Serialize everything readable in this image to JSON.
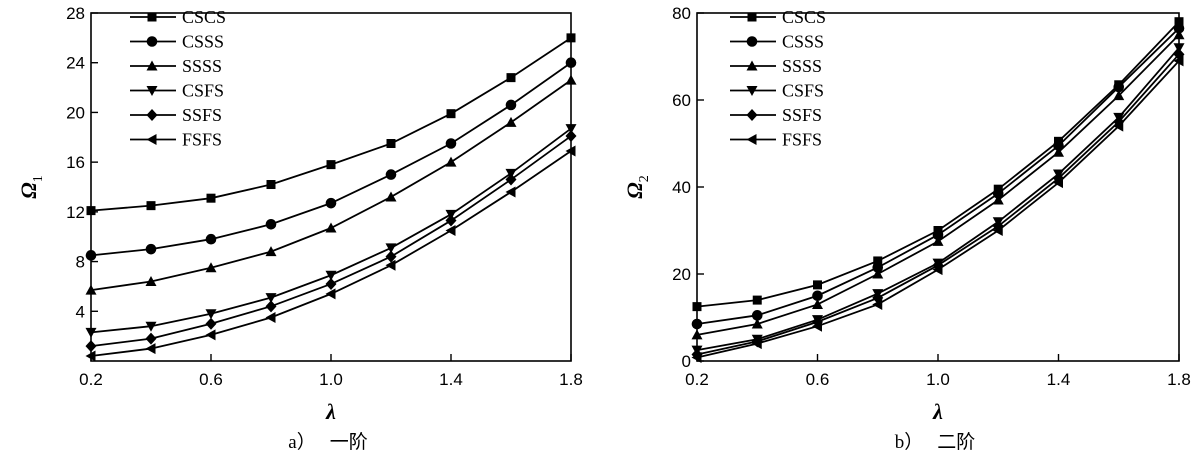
{
  "chart_data": [
    {
      "type": "line",
      "caption_letter": "a）",
      "caption_text": "一阶",
      "xlabel": "λ",
      "ylabel_main": "Ω",
      "ylabel_sub": "1",
      "xlim": [
        0.2,
        1.8
      ],
      "ylim": [
        0,
        28
      ],
      "xticks": [
        0.2,
        0.6,
        1.0,
        1.4,
        1.8
      ],
      "xtick_labels": [
        "0.2",
        "0.6",
        "1.0",
        "1.4",
        "1.8"
      ],
      "yticks": [
        4,
        8,
        12,
        16,
        20,
        24,
        28
      ],
      "ytick_labels": [
        "4",
        "8",
        "12",
        "16",
        "20",
        "24",
        "28"
      ],
      "x": [
        0.2,
        0.4,
        0.6,
        0.8,
        1.0,
        1.2,
        1.4,
        1.6,
        1.8
      ],
      "legend_position": "top-left",
      "series": [
        {
          "name": "CSCS",
          "marker": "square",
          "values": [
            12.1,
            12.5,
            13.1,
            14.2,
            15.8,
            17.5,
            19.9,
            22.8,
            26.0
          ]
        },
        {
          "name": "CSSS",
          "marker": "circle",
          "values": [
            8.5,
            9.0,
            9.8,
            11.0,
            12.7,
            15.0,
            17.5,
            20.6,
            24.0
          ]
        },
        {
          "name": "SSSS",
          "marker": "triangle-up",
          "values": [
            5.7,
            6.4,
            7.5,
            8.8,
            10.7,
            13.2,
            16.0,
            19.2,
            22.6
          ]
        },
        {
          "name": "CSFS",
          "marker": "triangle-down",
          "values": [
            2.3,
            2.8,
            3.8,
            5.1,
            6.9,
            9.1,
            11.8,
            15.1,
            18.7
          ]
        },
        {
          "name": "SSFS",
          "marker": "diamond",
          "values": [
            1.2,
            1.8,
            3.0,
            4.4,
            6.2,
            8.4,
            11.3,
            14.6,
            18.1
          ]
        },
        {
          "name": "FSFS",
          "marker": "triangle-left",
          "values": [
            0.4,
            1.0,
            2.1,
            3.5,
            5.4,
            7.7,
            10.5,
            13.6,
            16.9
          ]
        }
      ]
    },
    {
      "type": "line",
      "caption_letter": "b）",
      "caption_text": "二阶",
      "xlabel": "λ",
      "ylabel_main": "Ω",
      "ylabel_sub": "2",
      "xlim": [
        0.2,
        1.8
      ],
      "ylim": [
        0,
        80
      ],
      "xticks": [
        0.2,
        0.6,
        1.0,
        1.4,
        1.8
      ],
      "xtick_labels": [
        "0.2",
        "0.6",
        "1.0",
        "1.4",
        "1.8"
      ],
      "yticks": [
        0,
        20,
        40,
        60,
        80
      ],
      "ytick_labels": [
        "0",
        "20",
        "40",
        "60",
        "80"
      ],
      "x": [
        0.2,
        0.4,
        0.6,
        0.8,
        1.0,
        1.2,
        1.4,
        1.6,
        1.8
      ],
      "legend_position": "top-left",
      "series": [
        {
          "name": "CSCS",
          "marker": "square",
          "values": [
            12.5,
            14.0,
            17.5,
            23.0,
            30.0,
            39.5,
            50.5,
            63.5,
            78.0
          ]
        },
        {
          "name": "CSSS",
          "marker": "circle",
          "values": [
            8.5,
            10.5,
            15.0,
            21.5,
            29.0,
            38.5,
            49.5,
            63.0,
            76.5
          ]
        },
        {
          "name": "SSSS",
          "marker": "triangle-up",
          "values": [
            6.0,
            8.5,
            13.0,
            20.0,
            27.5,
            37.0,
            48.0,
            61.0,
            75.0
          ]
        },
        {
          "name": "CSFS",
          "marker": "triangle-down",
          "values": [
            2.5,
            5.0,
            9.5,
            15.5,
            22.5,
            32.0,
            43.0,
            56.0,
            72.0
          ]
        },
        {
          "name": "SSFS",
          "marker": "diamond",
          "values": [
            1.5,
            4.5,
            9.0,
            14.5,
            22.0,
            31.0,
            42.0,
            55.0,
            70.5
          ]
        },
        {
          "name": "FSFS",
          "marker": "triangle-left",
          "values": [
            0.8,
            4.0,
            8.0,
            13.0,
            21.0,
            30.0,
            41.0,
            54.0,
            69.0
          ]
        }
      ]
    }
  ]
}
